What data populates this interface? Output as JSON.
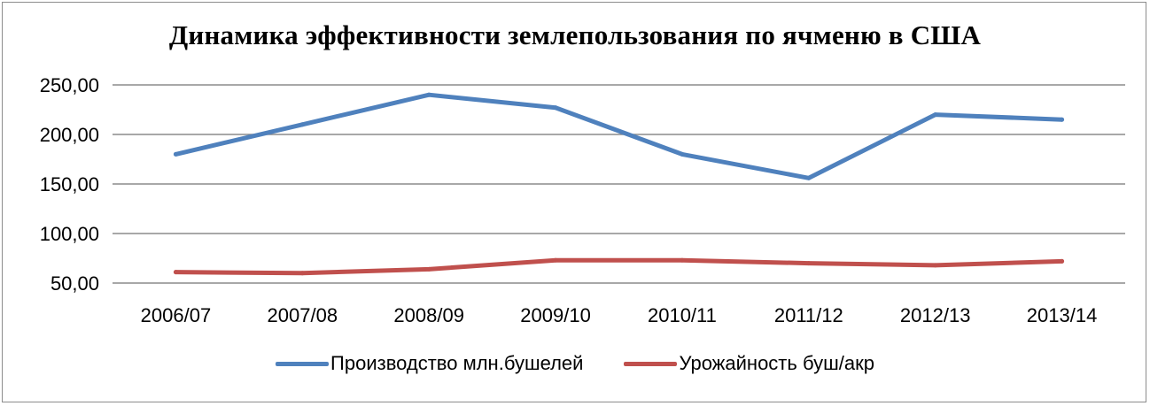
{
  "chart_data": {
    "type": "line",
    "title": "Динамика эффективности землепользования по ячменю в США",
    "xlabel": "",
    "ylabel": "",
    "categories": [
      "2006/07",
      "2007/08",
      "2008/09",
      "2009/10",
      "2010/11",
      "2011/12",
      "2012/13",
      "2013/14"
    ],
    "y_ticks": [
      "50,00",
      "100,00",
      "150,00",
      "200,00",
      "250,00"
    ],
    "ylim": [
      50,
      250
    ],
    "grid": true,
    "legend_position": "bottom",
    "series": [
      {
        "name": "Производство млн.бушелей",
        "color": "#4f81bd",
        "values": [
          180,
          210,
          240,
          227,
          180,
          156,
          220,
          215
        ]
      },
      {
        "name": "Урожайность буш/акр",
        "color": "#c0504d",
        "values": [
          61,
          60,
          64,
          73,
          73,
          70,
          68,
          72
        ]
      }
    ]
  }
}
